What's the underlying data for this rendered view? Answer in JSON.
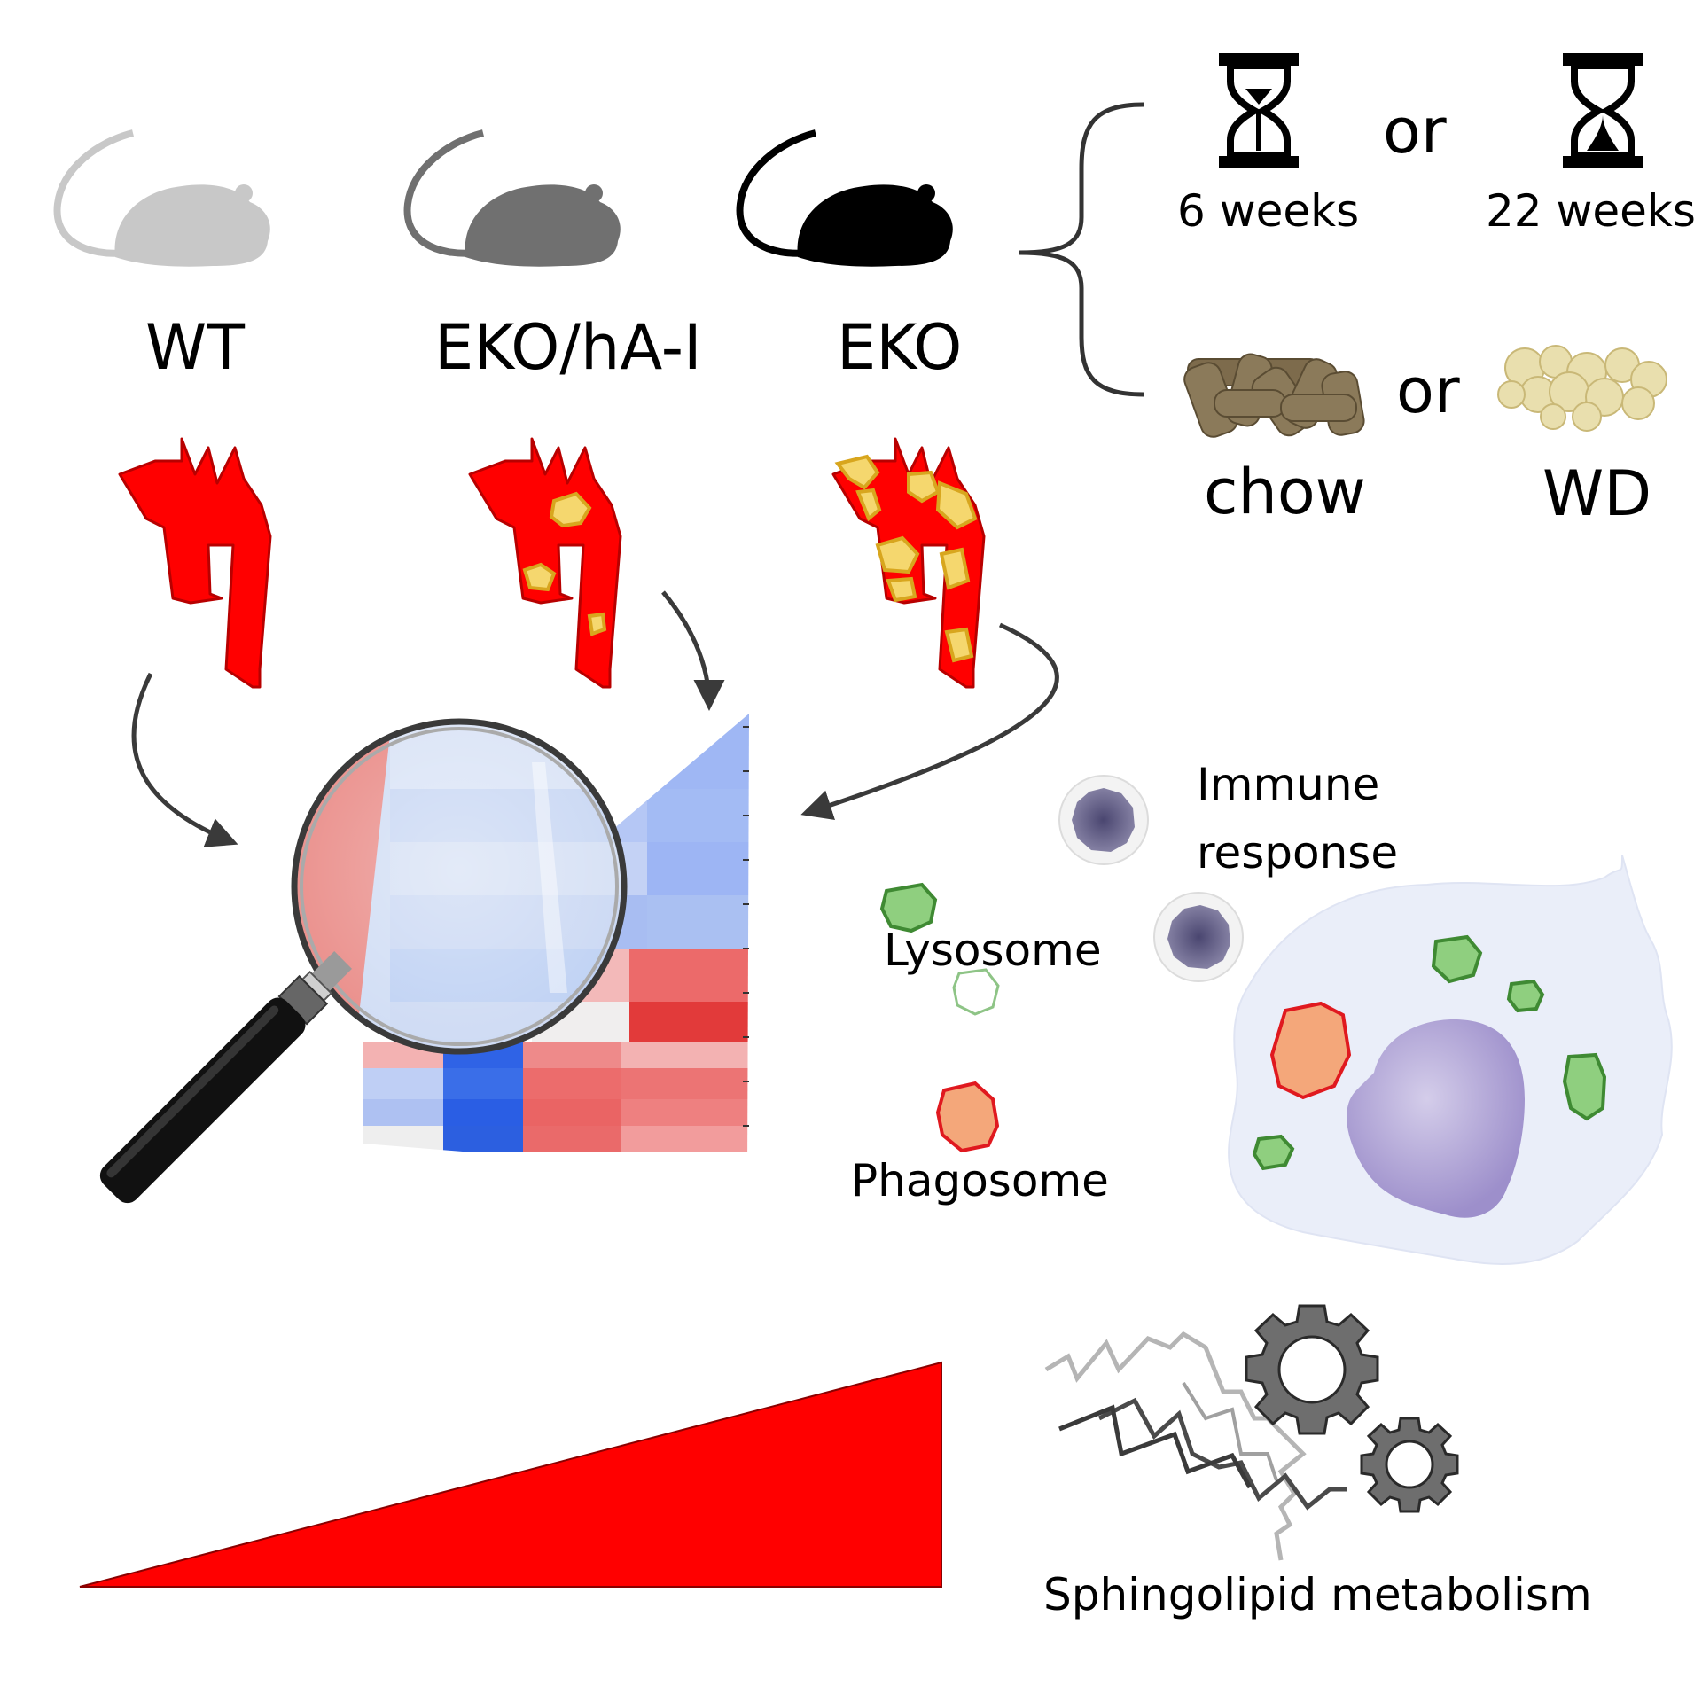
{
  "genotypes": [
    {
      "label": "WT",
      "mouse_color": "#c8c8c8"
    },
    {
      "label": "EKO/hA-I",
      "mouse_color": "#707070"
    },
    {
      "label": "EKO",
      "mouse_color": "#000000"
    }
  ],
  "conditions": {
    "duration_short": "6 weeks",
    "duration_long": "22 weeks",
    "connector_time": "or",
    "diet_chow": "chow",
    "diet_wd": "WD",
    "connector_diet": "or"
  },
  "cell_labels": {
    "immune_line1": "Immune",
    "immune_line2": "response",
    "lysosome": "Lysosome",
    "phagosome": "Phagosome",
    "sphingolipid": "Sphingolipid metabolism"
  },
  "colors": {
    "aorta": "#ff0000",
    "plaque": "#f5d76e",
    "lysosome": "#8fcf7f",
    "phagosome": "#f4a77a",
    "heat_red": "#e23a3a",
    "heat_blue": "#3a6ee8"
  },
  "icons": [
    "mouse-icon",
    "aortic-arch-icon",
    "hourglass-icon",
    "food-pellets-icon",
    "magnifier-icon",
    "gear-icon",
    "lipid-chain-icon",
    "macrophage-icon"
  ]
}
